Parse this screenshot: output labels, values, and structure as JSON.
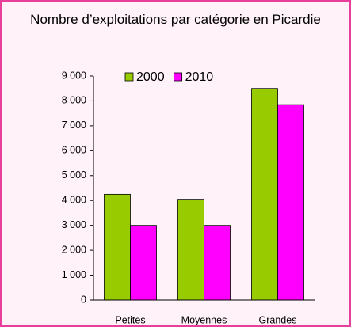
{
  "chart_data": {
    "type": "bar",
    "title": "Nombre d’exploitations par catégorie en Picardie",
    "categories": [
      "Petites",
      "Moyennes",
      "Grandes"
    ],
    "series": [
      {
        "name": "2000",
        "color": "#99cc00",
        "values": [
          4250,
          4050,
          8500
        ]
      },
      {
        "name": "2010",
        "color": "#ff00ff",
        "values": [
          3000,
          3000,
          7850
        ]
      }
    ],
    "ylim": [
      0,
      9000
    ],
    "yticks": [
      0,
      {
        "value": 1000,
        "label": "1 000"
      },
      {
        "value": 2000,
        "label": "2 000"
      },
      {
        "value": 3000,
        "label": "3 000"
      },
      {
        "value": 4000,
        "label": "4 000"
      },
      {
        "value": 5000,
        "label": "5 000"
      },
      {
        "value": 6000,
        "label": "6 000"
      },
      {
        "value": 7000,
        "label": "7 000"
      },
      {
        "value": 8000,
        "label": "8 000"
      },
      {
        "value": 9000,
        "label": "9 000"
      }
    ],
    "legend": "top"
  }
}
